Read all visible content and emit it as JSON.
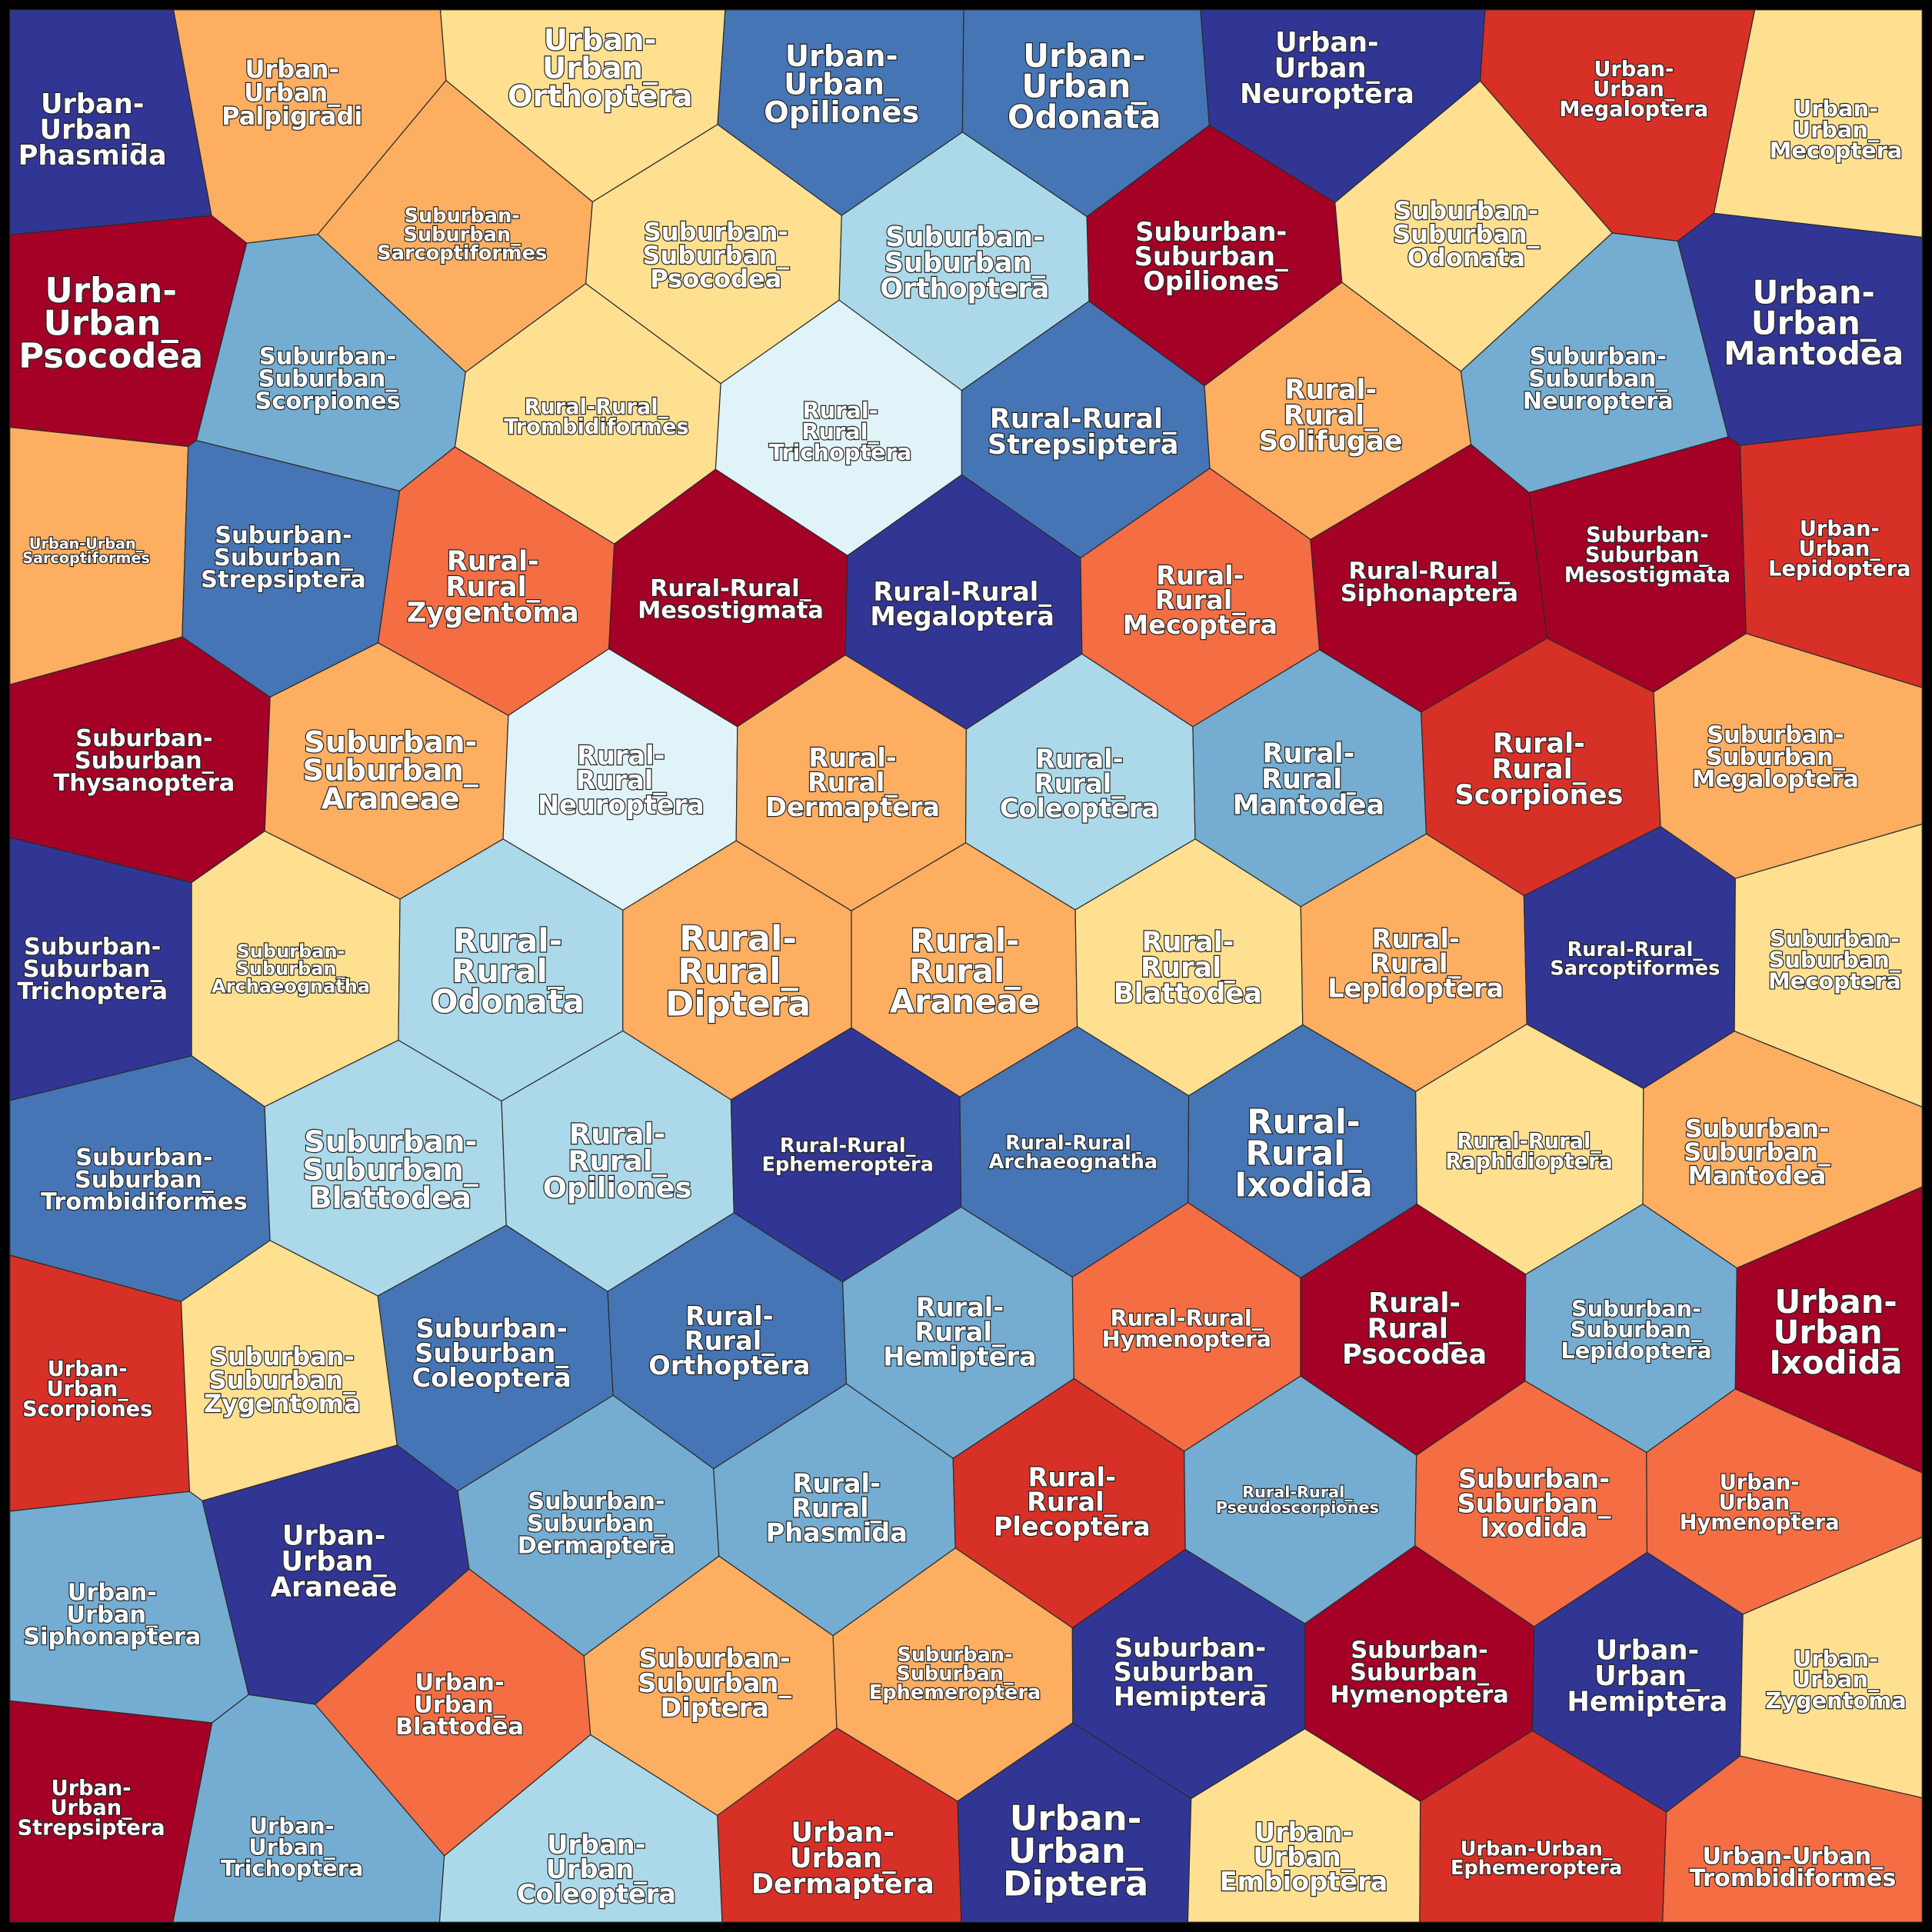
{
  "palette": {
    "dark_red": "#a50026",
    "red": "#d73027",
    "orange": "#f46d43",
    "light_orange": "#fdae61",
    "yellow": "#fee090",
    "pale_blue": "#e0f3f8",
    "light_blue": "#abd9e9",
    "mid_blue": "#74add1",
    "blue": "#4575b4",
    "dark_blue": "#313695",
    "border": "#000000"
  },
  "cells": [
    {
      "label": "Urban-Urban_Phasmida",
      "color": "#313695"
    },
    {
      "label": "Urban-Urban_Palpigradi",
      "color": "#fdae61"
    },
    {
      "label": "Urban-Urban_Orthoptera",
      "color": "#fee090"
    },
    {
      "label": "Urban-Urban_Opiliones",
      "color": "#4575b4"
    },
    {
      "label": "Urban-Urban_Odonata",
      "color": "#4575b4"
    },
    {
      "label": "Urban-Urban_Neuroptera",
      "color": "#313695"
    },
    {
      "label": "Urban-Urban_Megaloptera",
      "color": "#d73027"
    },
    {
      "label": "Urban-Urban_Mecoptera",
      "color": "#fee090"
    },
    {
      "label": "Suburban-Suburban_Sarcoptiformes",
      "color": "#fdae61"
    },
    {
      "label": "Suburban-Suburban_Psocodea",
      "color": "#fee090"
    },
    {
      "label": "Suburban-Suburban_Orthoptera",
      "color": "#abd9e9"
    },
    {
      "label": "Suburban-Suburban_Opiliones",
      "color": "#a50026"
    },
    {
      "label": "Suburban-Suburban_Odonata",
      "color": "#fee090"
    },
    {
      "label": "Urban-Urban_Psocodea",
      "color": "#a50026"
    },
    {
      "label": "Urban-Urban_Mantodea",
      "color": "#313695"
    },
    {
      "label": "Suburban-Suburban_Scorpiones",
      "color": "#74add1"
    },
    {
      "label": "Rural-Rural_Trombidiformes",
      "color": "#fee090"
    },
    {
      "label": "Rural-Rural_Trichoptera",
      "color": "#e0f3f8"
    },
    {
      "label": "Rural-Rural_Strepsiptera",
      "color": "#4575b4"
    },
    {
      "label": "Rural-Rural_Solifugae",
      "color": "#fdae61"
    },
    {
      "label": "Suburban-Suburban_Neuroptera",
      "color": "#74add1"
    },
    {
      "label": "Urban-Urban_Sarcoptiformes",
      "color": "#fdae61"
    },
    {
      "label": "Suburban-Suburban_Strepsiptera",
      "color": "#4575b4"
    },
    {
      "label": "Rural-Rural_Zygentoma",
      "color": "#f46d43"
    },
    {
      "label": "Rural-Rural_Mesostigmata",
      "color": "#a50026"
    },
    {
      "label": "Rural-Rural_Megaloptera",
      "color": "#313695"
    },
    {
      "label": "Rural-Rural_Mecoptera",
      "color": "#f46d43"
    },
    {
      "label": "Rural-Rural_Siphonaptera",
      "color": "#a50026"
    },
    {
      "label": "Suburban-Suburban_Mesostigmata",
      "color": "#a50026"
    },
    {
      "label": "Urban-Urban_Lepidoptera",
      "color": "#d73027"
    },
    {
      "label": "Suburban-Suburban_Thysanoptera",
      "color": "#a50026"
    },
    {
      "label": "Suburban-Suburban_Araneae",
      "color": "#fdae61"
    },
    {
      "label": "Rural-Rural_Neuroptera",
      "color": "#e0f3f8"
    },
    {
      "label": "Rural-Rural_Dermaptera",
      "color": "#fdae61"
    },
    {
      "label": "Rural-Rural_Coleoptera",
      "color": "#abd9e9"
    },
    {
      "label": "Rural-Rural_Mantodea",
      "color": "#74add1"
    },
    {
      "label": "Rural-Rural_Scorpiones",
      "color": "#d73027"
    },
    {
      "label": "Suburban-Suburban_Megaloptera",
      "color": "#fdae61"
    },
    {
      "label": "Suburban-Suburban_Trichoptera",
      "color": "#313695"
    },
    {
      "label": "Suburban-Suburban_Archaeognatha",
      "color": "#fee090"
    },
    {
      "label": "Rural-Rural_Odonata",
      "color": "#abd9e9"
    },
    {
      "label": "Rural-Rural_Diptera",
      "color": "#fdae61"
    },
    {
      "label": "Rural-Rural_Araneae",
      "color": "#fdae61"
    },
    {
      "label": "Rural-Rural_Blattodea",
      "color": "#fee090"
    },
    {
      "label": "Rural-Rural_Lepidoptera",
      "color": "#fdae61"
    },
    {
      "label": "Rural-Rural_Sarcoptiformes",
      "color": "#313695"
    },
    {
      "label": "Suburban-Suburban_Mecoptera",
      "color": "#fee090"
    },
    {
      "label": "Suburban-Suburban_Trombidiformes",
      "color": "#4575b4"
    },
    {
      "label": "Suburban-Suburban_Blattodea",
      "color": "#abd9e9"
    },
    {
      "label": "Rural-Rural_Opiliones",
      "color": "#abd9e9"
    },
    {
      "label": "Rural-Rural_Ephemeroptera",
      "color": "#313695"
    },
    {
      "label": "Rural-Rural_Archaeognatha",
      "color": "#4575b4"
    },
    {
      "label": "Rural-Rural_Ixodida",
      "color": "#4575b4"
    },
    {
      "label": "Rural-Rural_Raphidioptera",
      "color": "#fee090"
    },
    {
      "label": "Suburban-Suburban_Mantodea",
      "color": "#fdae61"
    },
    {
      "label": "Urban-Urban_Scorpiones",
      "color": "#d73027"
    },
    {
      "label": "Suburban-Suburban_Zygentoma",
      "color": "#fee090"
    },
    {
      "label": "Suburban-Suburban_Coleoptera",
      "color": "#4575b4"
    },
    {
      "label": "Rural-Rural_Orthoptera",
      "color": "#4575b4"
    },
    {
      "label": "Rural-Rural_Hemiptera",
      "color": "#74add1"
    },
    {
      "label": "Rural-Rural_Hymenoptera",
      "color": "#f46d43"
    },
    {
      "label": "Rural-Rural_Psocodea",
      "color": "#a50026"
    },
    {
      "label": "Suburban-Suburban_Lepidoptera",
      "color": "#74add1"
    },
    {
      "label": "Urban-Urban_Ixodida",
      "color": "#a50026"
    },
    {
      "label": "Suburban-Suburban_Dermaptera",
      "color": "#74add1"
    },
    {
      "label": "Rural-Rural_Phasmida",
      "color": "#74add1"
    },
    {
      "label": "Rural-Rural_Plecoptera",
      "color": "#d73027"
    },
    {
      "label": "Rural-Rural_Pseudoscorpiones",
      "color": "#74add1"
    },
    {
      "label": "Suburban-Suburban_Ixodida",
      "color": "#f46d43"
    },
    {
      "label": "Urban-Urban_Hymenoptera",
      "color": "#f46d43"
    },
    {
      "label": "Urban-Urban_Araneae",
      "color": "#313695"
    },
    {
      "label": "Urban-Urban_Siphonaptera",
      "color": "#74add1"
    },
    {
      "label": "Urban-Urban_Blattodea",
      "color": "#f46d43"
    },
    {
      "label": "Suburban-Suburban_Diptera",
      "color": "#fdae61"
    },
    {
      "label": "Suburban-Suburban_Ephemeroptera",
      "color": "#fdae61"
    },
    {
      "label": "Suburban-Suburban_Hemiptera",
      "color": "#313695"
    },
    {
      "label": "Suburban-Suburban_Hymenoptera",
      "color": "#a50026"
    },
    {
      "label": "Urban-Urban_Hemiptera",
      "color": "#313695"
    },
    {
      "label": "Urban-Urban_Zygentoma",
      "color": "#fee090"
    },
    {
      "label": "Urban-Urban_Strepsiptera",
      "color": "#a50026"
    },
    {
      "label": "Urban-Urban_Trichoptera",
      "color": "#74add1"
    },
    {
      "label": "Urban-Urban_Coleoptera",
      "color": "#abd9e9"
    },
    {
      "label": "Urban-Urban_Dermaptera",
      "color": "#d73027"
    },
    {
      "label": "Urban-Urban_Diptera",
      "color": "#313695"
    },
    {
      "label": "Urban-Urban_Embioptera",
      "color": "#fee090"
    },
    {
      "label": "Urban-Urban_Ephemeroptera",
      "color": "#d73027"
    },
    {
      "label": "Urban-Urban_Trombidiformes",
      "color": "#f46d43"
    }
  ]
}
